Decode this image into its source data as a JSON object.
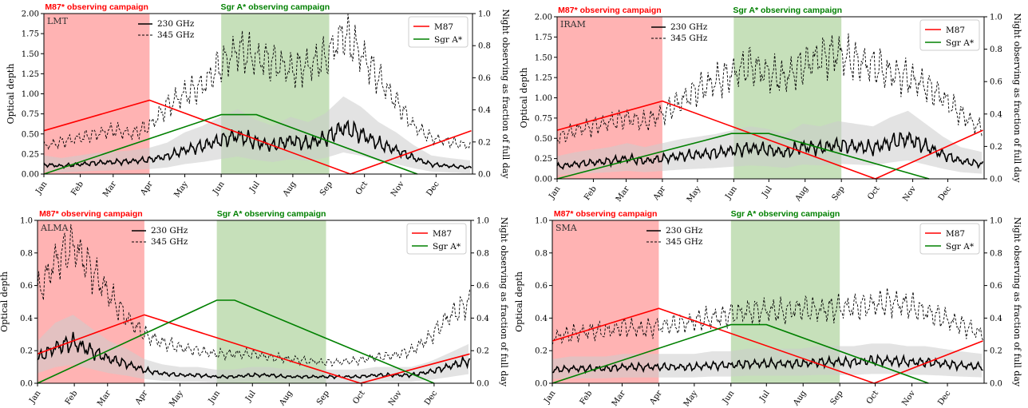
{
  "colors": {
    "m87": "#ff0000",
    "sgra": "#008000",
    "m87_band": "#ff9999",
    "sgra_band": "#b3d6a3",
    "tau230": "#000000",
    "tau345": "#000000",
    "spread": "#cccccc"
  },
  "campaign_labels": {
    "m87": "M87* observing campaign",
    "sgra": "Sgr A* observing campaign"
  },
  "legend": {
    "tau230": "230 GHz",
    "tau345": "345 GHz",
    "m87": "M87",
    "sgra": "Sgr A*"
  },
  "axes_text": {
    "ylabel_left": "Optical depth",
    "ylabel_right": "Night observing as fraction of full day"
  },
  "chart_data": [
    {
      "station": "LMT",
      "type": "line",
      "ylim_left": [
        0,
        2.0
      ],
      "yticks_left": [
        "0.00",
        "0.25",
        "0.50",
        "0.75",
        "1.00",
        "1.25",
        "1.50",
        "1.75",
        "2.00"
      ],
      "ylim_right": [
        0,
        1.0
      ],
      "yticks_right": [
        "0.0",
        "0.2",
        "0.4",
        "0.6",
        "0.8",
        "1.0"
      ],
      "x_months": [
        "Jan",
        "Feb",
        "Mar",
        "Apr",
        "May",
        "Jun",
        "Jul",
        "Aug",
        "Sep",
        "Oct",
        "Nov",
        "Dec"
      ],
      "campaign_m87_days": [
        0,
        90
      ],
      "campaign_sgra_days": [
        151,
        243
      ],
      "tau230_days": [
        0,
        15,
        30,
        45,
        60,
        75,
        90,
        105,
        120,
        135,
        150,
        165,
        180,
        195,
        210,
        225,
        240,
        255,
        270,
        285,
        300,
        315,
        330,
        345,
        364
      ],
      "tau230": [
        0.12,
        0.1,
        0.12,
        0.14,
        0.15,
        0.16,
        0.18,
        0.22,
        0.3,
        0.35,
        0.42,
        0.48,
        0.4,
        0.35,
        0.42,
        0.38,
        0.45,
        0.58,
        0.5,
        0.38,
        0.3,
        0.2,
        0.12,
        0.1,
        0.08
      ],
      "tau345": [
        0.35,
        0.4,
        0.45,
        0.5,
        0.55,
        0.5,
        0.6,
        0.85,
        1.0,
        1.1,
        1.35,
        1.55,
        1.45,
        1.4,
        1.3,
        1.35,
        1.45,
        1.75,
        1.5,
        1.2,
        0.9,
        0.6,
        0.45,
        0.4,
        0.35
      ],
      "m87_night_days": [
        0,
        90,
        261,
        364
      ],
      "m87_night": [
        0.27,
        0.46,
        0.0,
        0.27
      ],
      "sgra_night_days": [
        0,
        151,
        181,
        318
      ],
      "sgra_night": [
        0.0,
        0.37,
        0.37,
        0.0
      ]
    },
    {
      "station": "IRAM",
      "type": "line",
      "ylim_left": [
        0,
        2.0
      ],
      "yticks_left": [
        "0.00",
        "0.25",
        "0.50",
        "0.75",
        "1.00",
        "1.25",
        "1.50",
        "1.75",
        "2.00"
      ],
      "ylim_right": [
        0,
        1.0
      ],
      "yticks_right": [
        "0.0",
        "0.2",
        "0.4",
        "0.6",
        "0.8",
        "1.0"
      ],
      "x_months": [
        "Jan",
        "Feb",
        "Mar",
        "Apr",
        "May",
        "Jun",
        "Jul",
        "Aug",
        "Sep",
        "Oct",
        "Nov",
        "Dec"
      ],
      "campaign_m87_days": [
        0,
        90
      ],
      "campaign_sgra_days": [
        151,
        243
      ],
      "tau230_days": [
        0,
        15,
        30,
        45,
        60,
        75,
        90,
        105,
        120,
        135,
        150,
        165,
        180,
        195,
        210,
        225,
        240,
        255,
        270,
        285,
        300,
        315,
        330,
        345,
        364
      ],
      "tau230": [
        0.15,
        0.18,
        0.2,
        0.22,
        0.25,
        0.22,
        0.25,
        0.28,
        0.3,
        0.32,
        0.35,
        0.38,
        0.36,
        0.32,
        0.4,
        0.38,
        0.42,
        0.4,
        0.38,
        0.45,
        0.5,
        0.4,
        0.3,
        0.22,
        0.18
      ],
      "tau345": [
        0.5,
        0.6,
        0.65,
        0.7,
        0.75,
        0.7,
        0.8,
        0.95,
        1.1,
        1.2,
        1.3,
        1.4,
        1.3,
        1.25,
        1.4,
        1.5,
        1.55,
        1.45,
        1.4,
        1.3,
        1.25,
        1.15,
        1.0,
        0.8,
        0.6
      ],
      "m87_night_days": [
        0,
        90,
        272,
        364
      ],
      "m87_night": [
        0.3,
        0.48,
        0.0,
        0.3
      ],
      "sgra_night_days": [
        0,
        149,
        181,
        318
      ],
      "sgra_night": [
        0.0,
        0.28,
        0.28,
        0.0
      ]
    },
    {
      "station": "ALMA",
      "type": "line",
      "ylim_left": [
        0,
        1.0
      ],
      "yticks_left": [
        "0.0",
        "0.2",
        "0.4",
        "0.6",
        "0.8",
        "1.0"
      ],
      "ylim_right": [
        0,
        1.0
      ],
      "yticks_right": [
        "0.0",
        "0.2",
        "0.4",
        "0.6",
        "0.8",
        "1.0"
      ],
      "x_months": [
        "Jan",
        "Feb",
        "Mar",
        "Apr",
        "May",
        "Jun",
        "Jul",
        "Aug",
        "Sep",
        "Oct",
        "Nov",
        "Dec"
      ],
      "campaign_m87_days": [
        0,
        90
      ],
      "campaign_sgra_days": [
        151,
        243
      ],
      "tau230_days": [
        0,
        15,
        30,
        45,
        60,
        75,
        90,
        105,
        120,
        135,
        150,
        165,
        180,
        195,
        210,
        225,
        240,
        255,
        270,
        285,
        300,
        315,
        330,
        345,
        364
      ],
      "tau230": [
        0.15,
        0.22,
        0.25,
        0.2,
        0.15,
        0.12,
        0.08,
        0.06,
        0.05,
        0.05,
        0.04,
        0.04,
        0.05,
        0.05,
        0.04,
        0.04,
        0.04,
        0.04,
        0.04,
        0.05,
        0.05,
        0.05,
        0.07,
        0.1,
        0.14
      ],
      "tau345": [
        0.55,
        0.75,
        0.85,
        0.7,
        0.55,
        0.4,
        0.3,
        0.25,
        0.22,
        0.2,
        0.18,
        0.18,
        0.18,
        0.16,
        0.15,
        0.14,
        0.13,
        0.13,
        0.14,
        0.16,
        0.17,
        0.2,
        0.28,
        0.4,
        0.5
      ],
      "m87_night_days": [
        0,
        90,
        272,
        364
      ],
      "m87_night": [
        0.18,
        0.42,
        0.0,
        0.18
      ],
      "sgra_night_days": [
        0,
        151,
        166,
        334
      ],
      "sgra_night": [
        0.0,
        0.51,
        0.51,
        0.0
      ]
    },
    {
      "station": "SMA",
      "type": "line",
      "ylim_left": [
        0,
        1.0
      ],
      "yticks_left": [
        "0.0",
        "0.2",
        "0.4",
        "0.6",
        "0.8",
        "1.0"
      ],
      "ylim_right": [
        0,
        1.0
      ],
      "yticks_right": [
        "0.0",
        "0.2",
        "0.4",
        "0.6",
        "0.8",
        "1.0"
      ],
      "x_months": [
        "Jan",
        "Feb",
        "Mar",
        "Apr",
        "May",
        "Jun",
        "Jul",
        "Aug",
        "Sep",
        "Oct",
        "Nov",
        "Dec"
      ],
      "campaign_m87_days": [
        0,
        90
      ],
      "campaign_sgra_days": [
        151,
        243
      ],
      "tau230_days": [
        0,
        15,
        30,
        45,
        60,
        75,
        90,
        105,
        120,
        135,
        150,
        165,
        180,
        195,
        210,
        225,
        240,
        255,
        270,
        285,
        300,
        315,
        330,
        345,
        364
      ],
      "tau230": [
        0.08,
        0.09,
        0.09,
        0.09,
        0.1,
        0.1,
        0.1,
        0.1,
        0.1,
        0.11,
        0.11,
        0.12,
        0.12,
        0.12,
        0.12,
        0.13,
        0.13,
        0.13,
        0.14,
        0.14,
        0.13,
        0.13,
        0.12,
        0.11,
        0.1
      ],
      "tau345": [
        0.28,
        0.3,
        0.32,
        0.32,
        0.35,
        0.33,
        0.35,
        0.36,
        0.38,
        0.4,
        0.42,
        0.44,
        0.45,
        0.44,
        0.46,
        0.45,
        0.46,
        0.47,
        0.48,
        0.5,
        0.48,
        0.44,
        0.4,
        0.36,
        0.3
      ],
      "m87_night_days": [
        0,
        90,
        272,
        364
      ],
      "m87_night": [
        0.26,
        0.46,
        0.0,
        0.26
      ],
      "sgra_night_days": [
        0,
        151,
        181,
        318
      ],
      "sgra_night": [
        0.0,
        0.36,
        0.36,
        0.0
      ]
    }
  ]
}
